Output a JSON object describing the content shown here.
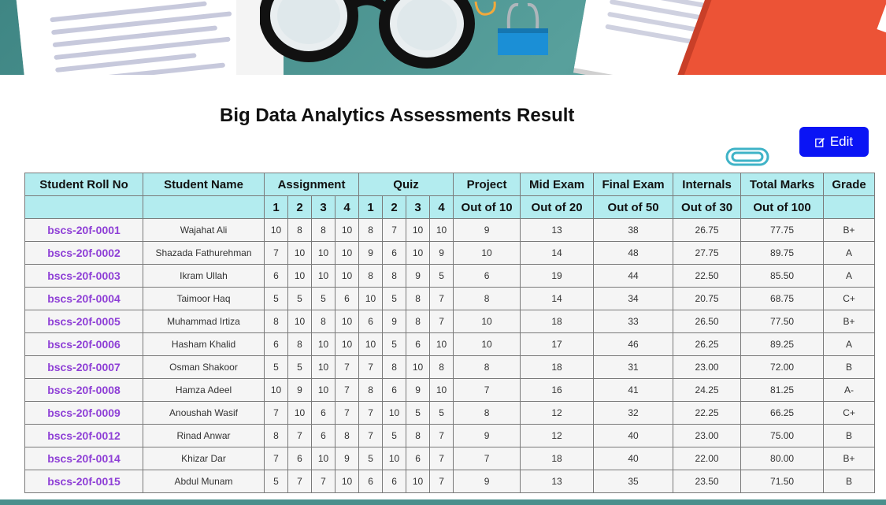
{
  "page_title": "Big Data Analytics Assessments Result",
  "edit_button_label": "Edit",
  "colors": {
    "header_bg": "#b3ecef",
    "button_bg": "#0a14f5",
    "roll_link": "#8e3fd6"
  },
  "table": {
    "headers": {
      "roll_no": "Student Roll No",
      "name": "Student Name",
      "assignment": "Assignment",
      "quiz": "Quiz",
      "project": "Project",
      "mid_exam": "Mid Exam",
      "final_exam": "Final Exam",
      "internals": "Internals",
      "total_marks": "Total Marks",
      "grade": "Grade"
    },
    "subheaders": {
      "assignment": [
        "1",
        "2",
        "3",
        "4"
      ],
      "quiz": [
        "1",
        "2",
        "3",
        "4"
      ],
      "project": "Out of 10",
      "mid_exam": "Out of 20",
      "final_exam": "Out of 50",
      "internals": "Out of 30",
      "total_marks": "Out of 100"
    },
    "rows": [
      {
        "roll": "bscs-20f-0001",
        "name": "Wajahat Ali",
        "a": [
          "10",
          "8",
          "8",
          "10"
        ],
        "q": [
          "8",
          "7",
          "10",
          "10"
        ],
        "project": "9",
        "mid": "13",
        "final": "38",
        "internals": "26.75",
        "total": "77.75",
        "grade": "B+"
      },
      {
        "roll": "bscs-20f-0002",
        "name": "Shazada Fathurehman",
        "a": [
          "7",
          "10",
          "10",
          "10"
        ],
        "q": [
          "9",
          "6",
          "10",
          "9"
        ],
        "project": "10",
        "mid": "14",
        "final": "48",
        "internals": "27.75",
        "total": "89.75",
        "grade": "A"
      },
      {
        "roll": "bscs-20f-0003",
        "name": "Ikram Ullah",
        "a": [
          "6",
          "10",
          "10",
          "10"
        ],
        "q": [
          "8",
          "8",
          "9",
          "5"
        ],
        "project": "6",
        "mid": "19",
        "final": "44",
        "internals": "22.50",
        "total": "85.50",
        "grade": "A"
      },
      {
        "roll": "bscs-20f-0004",
        "name": "Taimoor Haq",
        "a": [
          "5",
          "5",
          "5",
          "6"
        ],
        "q": [
          "10",
          "5",
          "8",
          "7"
        ],
        "project": "8",
        "mid": "14",
        "final": "34",
        "internals": "20.75",
        "total": "68.75",
        "grade": "C+"
      },
      {
        "roll": "bscs-20f-0005",
        "name": "Muhammad Irtiza",
        "a": [
          "8",
          "10",
          "8",
          "10"
        ],
        "q": [
          "6",
          "9",
          "8",
          "7"
        ],
        "project": "10",
        "mid": "18",
        "final": "33",
        "internals": "26.50",
        "total": "77.50",
        "grade": "B+"
      },
      {
        "roll": "bscs-20f-0006",
        "name": "Hasham Khalid",
        "a": [
          "6",
          "8",
          "10",
          "10"
        ],
        "q": [
          "10",
          "5",
          "6",
          "10"
        ],
        "project": "10",
        "mid": "17",
        "final": "46",
        "internals": "26.25",
        "total": "89.25",
        "grade": "A"
      },
      {
        "roll": "bscs-20f-0007",
        "name": "Osman Shakoor",
        "a": [
          "5",
          "5",
          "10",
          "7"
        ],
        "q": [
          "7",
          "8",
          "10",
          "8"
        ],
        "project": "8",
        "mid": "18",
        "final": "31",
        "internals": "23.00",
        "total": "72.00",
        "grade": "B"
      },
      {
        "roll": "bscs-20f-0008",
        "name": "Hamza Adeel",
        "a": [
          "10",
          "9",
          "10",
          "7"
        ],
        "q": [
          "8",
          "6",
          "9",
          "10"
        ],
        "project": "7",
        "mid": "16",
        "final": "41",
        "internals": "24.25",
        "total": "81.25",
        "grade": "A-"
      },
      {
        "roll": "bscs-20f-0009",
        "name": "Anoushah Wasif",
        "a": [
          "7",
          "10",
          "6",
          "7"
        ],
        "q": [
          "7",
          "10",
          "5",
          "5"
        ],
        "project": "8",
        "mid": "12",
        "final": "32",
        "internals": "22.25",
        "total": "66.25",
        "grade": "C+"
      },
      {
        "roll": "bscs-20f-0012",
        "name": "Rinad Anwar",
        "a": [
          "8",
          "7",
          "6",
          "8"
        ],
        "q": [
          "7",
          "5",
          "8",
          "7"
        ],
        "project": "9",
        "mid": "12",
        "final": "40",
        "internals": "23.00",
        "total": "75.00",
        "grade": "B"
      },
      {
        "roll": "bscs-20f-0014",
        "name": "Khizar Dar",
        "a": [
          "7",
          "6",
          "10",
          "9"
        ],
        "q": [
          "5",
          "10",
          "6",
          "7"
        ],
        "project": "7",
        "mid": "18",
        "final": "40",
        "internals": "22.00",
        "total": "80.00",
        "grade": "B+"
      },
      {
        "roll": "bscs-20f-0015",
        "name": "Abdul Munam",
        "a": [
          "5",
          "7",
          "7",
          "10"
        ],
        "q": [
          "6",
          "6",
          "10",
          "7"
        ],
        "project": "9",
        "mid": "13",
        "final": "35",
        "internals": "23.50",
        "total": "71.50",
        "grade": "B"
      }
    ]
  }
}
